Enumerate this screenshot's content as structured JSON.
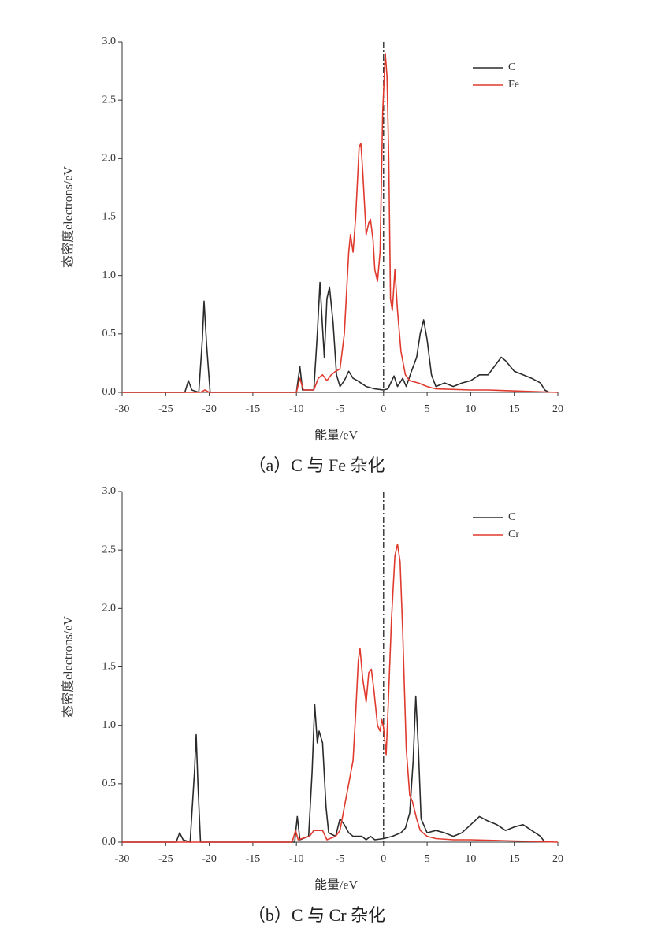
{
  "chart_data": [
    {
      "type": "line",
      "title": "（a）C 与 Fe 杂化",
      "x_label": "能量/eV",
      "y_label": "态密度electrons/eV",
      "xlim": [
        -30,
        20
      ],
      "ylim": [
        0,
        3.0
      ],
      "xticks": [
        -30,
        -25,
        -20,
        -15,
        -10,
        -5,
        0,
        5,
        10,
        15,
        20
      ],
      "yticks": [
        {
          "value": 0,
          "label": "0.0"
        },
        {
          "value": 0.5,
          "label": "0.5"
        },
        {
          "value": 1,
          "label": "1.0"
        },
        {
          "value": 1.5,
          "label": "1.5"
        },
        {
          "value": 2,
          "label": "2.0"
        },
        {
          "value": 2.5,
          "label": "2.5"
        },
        {
          "value": 3,
          "label": "3.0"
        }
      ],
      "vlines": [
        0
      ],
      "legend": "upper right",
      "series": [
        {
          "name": "C",
          "color": "#2b2b2b",
          "x": [
            -30,
            -22.8,
            -22.4,
            -22.0,
            -21.2,
            -20.8,
            -20.6,
            -20.3,
            -19.9,
            -10.0,
            -9.6,
            -9.3,
            -8.0,
            -7.6,
            -7.3,
            -7.0,
            -6.8,
            -6.5,
            -6.2,
            -5.8,
            -5.4,
            -5.0,
            -4.5,
            -4.0,
            -3.5,
            -3.0,
            -2.0,
            -1.0,
            0,
            0.5,
            1.2,
            1.6,
            2.2,
            2.6,
            3.2,
            3.8,
            4.2,
            4.6,
            5.0,
            5.5,
            6,
            7,
            8,
            9,
            10,
            11,
            12,
            13,
            13.5,
            14,
            15,
            16,
            17,
            18,
            18.5,
            19
          ],
          "values": [
            0,
            0,
            0.1,
            0.02,
            0,
            0.45,
            0.78,
            0.4,
            0,
            0,
            0.22,
            0.02,
            0.02,
            0.5,
            0.94,
            0.55,
            0.3,
            0.8,
            0.9,
            0.6,
            0.15,
            0.05,
            0.1,
            0.18,
            0.12,
            0.1,
            0.05,
            0.03,
            0.02,
            0.03,
            0.14,
            0.05,
            0.12,
            0.05,
            0.18,
            0.3,
            0.5,
            0.62,
            0.45,
            0.15,
            0.05,
            0.08,
            0.05,
            0.08,
            0.1,
            0.15,
            0.15,
            0.25,
            0.3,
            0.27,
            0.18,
            0.15,
            0.12,
            0.08,
            0.02,
            0
          ]
        },
        {
          "name": "Fe",
          "color": "#e03a2e",
          "x": [
            -30,
            -21,
            -20.5,
            -20,
            -10,
            -9.6,
            -9.2,
            -8,
            -7.5,
            -7,
            -6.5,
            -6,
            -5.5,
            -5,
            -4.5,
            -4.0,
            -3.8,
            -3.5,
            -3.2,
            -2.8,
            -2.6,
            -2.4,
            -2.0,
            -1.7,
            -1.5,
            -1.2,
            -1.0,
            -0.7,
            -0.4,
            -0.1,
            0.2,
            0.4,
            0.6,
            0.8,
            1.0,
            1.3,
            1.6,
            2,
            2.5,
            3,
            4,
            5,
            6,
            10,
            12,
            20
          ],
          "values": [
            0,
            0,
            0.02,
            0,
            0,
            0.12,
            0.02,
            0.02,
            0.12,
            0.15,
            0.1,
            0.15,
            0.18,
            0.2,
            0.5,
            1.2,
            1.35,
            1.2,
            1.5,
            2.1,
            2.13,
            1.9,
            1.35,
            1.45,
            1.48,
            1.3,
            1.05,
            0.95,
            1.2,
            2.4,
            2.9,
            2.7,
            2.0,
            0.8,
            0.7,
            1.05,
            0.7,
            0.35,
            0.15,
            0.1,
            0.08,
            0.05,
            0.03,
            0.02,
            0.02,
            0
          ]
        }
      ]
    },
    {
      "type": "line",
      "title": "（b）C 与 Cr 杂化",
      "x_label": "能量/eV",
      "y_label": "态密度electrons/eV",
      "xlim": [
        -30,
        20
      ],
      "ylim": [
        0,
        3.0
      ],
      "xticks": [
        -30,
        -25,
        -20,
        -15,
        -10,
        -5,
        0,
        5,
        10,
        15,
        20
      ],
      "yticks": [
        {
          "value": 0,
          "label": "0.0"
        },
        {
          "value": 0.5,
          "label": "0.5"
        },
        {
          "value": 1,
          "label": "1.0"
        },
        {
          "value": 1.5,
          "label": "1.5"
        },
        {
          "value": 2,
          "label": "2.0"
        },
        {
          "value": 2.5,
          "label": "2.5"
        },
        {
          "value": 3,
          "label": "3.0"
        }
      ],
      "vlines": [
        0
      ],
      "legend": "upper right",
      "series": [
        {
          "name": "C",
          "color": "#2b2b2b",
          "x": [
            -30,
            -23.8,
            -23.4,
            -23,
            -22.2,
            -21.7,
            -21.5,
            -21.3,
            -21,
            -10.2,
            -9.9,
            -9.6,
            -8.6,
            -8.2,
            -7.9,
            -7.6,
            -7.4,
            -7.0,
            -6.6,
            -6.3,
            -5.5,
            -5,
            -4.5,
            -4,
            -3.5,
            -2.5,
            -2,
            -1.5,
            -1,
            0,
            1,
            2,
            2.5,
            3,
            3.4,
            3.7,
            4.0,
            4.3,
            5,
            6,
            7,
            8,
            9,
            10,
            11,
            12,
            13,
            14,
            15,
            16,
            17,
            18,
            18.5
          ],
          "values": [
            0,
            0,
            0.08,
            0.02,
            0,
            0.6,
            0.92,
            0.5,
            0,
            0,
            0.22,
            0.02,
            0.05,
            0.6,
            1.18,
            0.85,
            0.95,
            0.85,
            0.3,
            0.08,
            0.05,
            0.2,
            0.15,
            0.08,
            0.05,
            0.05,
            0.02,
            0.05,
            0.02,
            0.03,
            0.05,
            0.08,
            0.12,
            0.25,
            0.7,
            1.25,
            0.8,
            0.2,
            0.08,
            0.1,
            0.08,
            0.05,
            0.08,
            0.15,
            0.22,
            0.18,
            0.15,
            0.1,
            0.13,
            0.15,
            0.1,
            0.05,
            0
          ]
        },
        {
          "name": "Cr",
          "color": "#e03a2e",
          "x": [
            -30,
            -10.5,
            -10.1,
            -9.8,
            -8.5,
            -8,
            -7,
            -6.5,
            -5.5,
            -5,
            -4.5,
            -4,
            -3.5,
            -3.2,
            -2.9,
            -2.7,
            -2.4,
            -2.0,
            -1.7,
            -1.4,
            -1.1,
            -0.7,
            -0.4,
            -0.2,
            0,
            0.3,
            0.5,
            0.9,
            1.3,
            1.6,
            1.9,
            2.2,
            2.6,
            3.0,
            3.3,
            3.8,
            4.2,
            5,
            6,
            8,
            10,
            20
          ],
          "values": [
            0,
            0,
            0.1,
            0.02,
            0.05,
            0.1,
            0.1,
            0.02,
            0.05,
            0.1,
            0.3,
            0.5,
            0.7,
            1.1,
            1.55,
            1.66,
            1.4,
            1.2,
            1.45,
            1.48,
            1.3,
            1.0,
            0.95,
            1.05,
            0.98,
            0.75,
            1.1,
            1.9,
            2.45,
            2.55,
            2.4,
            1.8,
            0.8,
            0.4,
            0.35,
            0.2,
            0.1,
            0.05,
            0.03,
            0.02,
            0.02,
            0
          ]
        }
      ]
    }
  ]
}
